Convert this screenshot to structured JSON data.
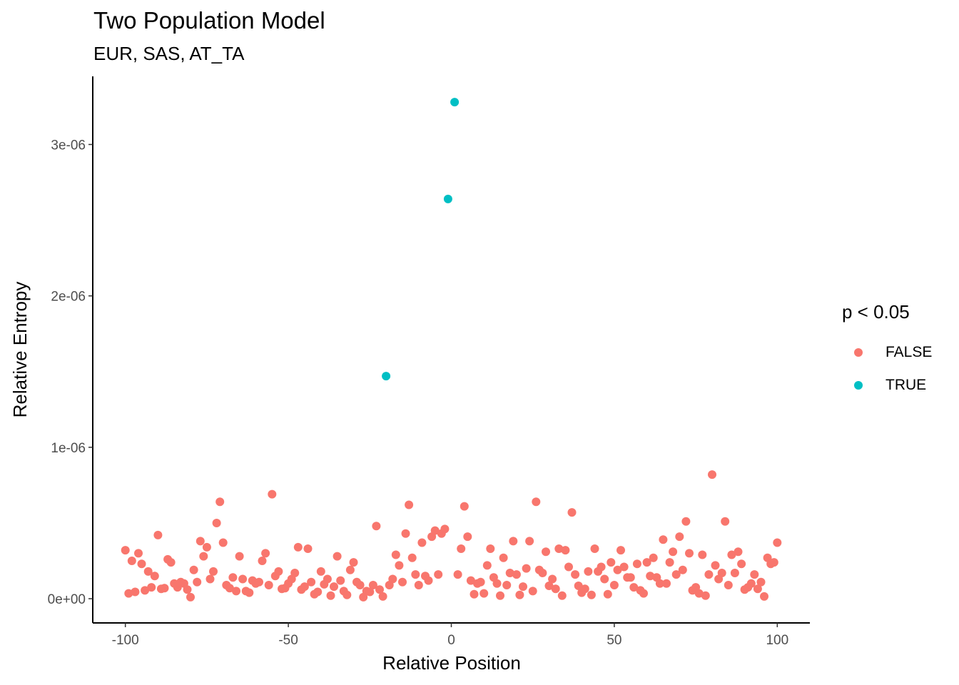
{
  "chart_data": {
    "type": "scatter",
    "title": "Two Population Model",
    "subtitle": "EUR, SAS, AT_TA",
    "xlabel": "Relative Position",
    "ylabel": "Relative Entropy",
    "xlim": [
      -110,
      110
    ],
    "ylim": [
      -1.6e-07,
      3.45e-06
    ],
    "x_ticks": [
      -100,
      -50,
      0,
      50,
      100
    ],
    "x_tick_labels": [
      "-100",
      "-50",
      "0",
      "50",
      "100"
    ],
    "y_ticks": [
      0,
      1e-06,
      2e-06,
      3e-06
    ],
    "y_tick_labels": [
      "0e+00",
      "1e-06",
      "2e-06",
      "3e-06"
    ],
    "grid": false,
    "legend": {
      "title": "p < 0.05",
      "position": "right"
    },
    "series": [
      {
        "name": "FALSE",
        "color": "#F8766D",
        "x": [
          -100,
          -99,
          -98,
          -97,
          -96,
          -95,
          -94,
          -93,
          -92,
          -91,
          -90,
          -89,
          -88,
          -87,
          -86,
          -85,
          -84,
          -83,
          -82,
          -81,
          -80,
          -79,
          -78,
          -77,
          -76,
          -75,
          -74,
          -73,
          -72,
          -71,
          -70,
          -69,
          -68,
          -67,
          -66,
          -65,
          -64,
          -63,
          -62,
          -61,
          -60,
          -59,
          -58,
          -57,
          -56,
          -55,
          -54,
          -53,
          -52,
          -51,
          -50,
          -49,
          -48,
          -47,
          -46,
          -45,
          -44,
          -43,
          -42,
          -41,
          -40,
          -39,
          -38,
          -37,
          -36,
          -35,
          -34,
          -33,
          -32,
          -31,
          -30,
          -29,
          -28,
          -27,
          -26,
          -25,
          -24,
          -23,
          -22,
          -21,
          -19,
          -18,
          -17,
          -16,
          -15,
          -14,
          -13,
          -12,
          -11,
          -10,
          -9,
          -8,
          -7,
          -6,
          -5,
          -4,
          -3,
          -2,
          2,
          3,
          4,
          5,
          6,
          7,
          8,
          9,
          10,
          11,
          12,
          13,
          14,
          15,
          16,
          17,
          18,
          19,
          20,
          21,
          22,
          23,
          24,
          25,
          26,
          27,
          28,
          29,
          30,
          31,
          32,
          33,
          34,
          35,
          36,
          37,
          38,
          39,
          40,
          41,
          42,
          43,
          44,
          45,
          46,
          47,
          48,
          49,
          50,
          51,
          52,
          53,
          54,
          55,
          56,
          57,
          58,
          59,
          60,
          61,
          62,
          63,
          64,
          65,
          66,
          67,
          68,
          69,
          70,
          71,
          72,
          73,
          74,
          75,
          76,
          77,
          78,
          79,
          80,
          81,
          82,
          83,
          84,
          85,
          86,
          87,
          88,
          89,
          90,
          91,
          92,
          93,
          94,
          95,
          96,
          97,
          98,
          99,
          100
        ],
        "y": [
          3.2e-07,
          3.5e-08,
          2.5e-07,
          4.5e-08,
          3e-07,
          2.3e-07,
          5.5e-08,
          1.8e-07,
          7.5e-08,
          1.5e-07,
          4.2e-07,
          6.5e-08,
          7e-08,
          2.6e-07,
          2.4e-07,
          1e-07,
          7.5e-08,
          1.1e-07,
          1e-07,
          6e-08,
          1e-08,
          1.9e-07,
          1.1e-07,
          3.8e-07,
          2.8e-07,
          3.4e-07,
          1.3e-07,
          1.8e-07,
          5e-07,
          6.4e-07,
          3.7e-07,
          9e-08,
          7e-08,
          1.4e-07,
          5e-08,
          2.8e-07,
          1.3e-07,
          5e-08,
          4e-08,
          1.2e-07,
          1e-07,
          1.1e-07,
          2.5e-07,
          3e-07,
          9e-08,
          6.9e-07,
          1.5e-07,
          1.8e-07,
          6.5e-08,
          7e-08,
          1e-07,
          1.3e-07,
          1.7e-07,
          3.4e-07,
          6e-08,
          8e-08,
          3.3e-07,
          1.1e-07,
          3e-08,
          4.5e-08,
          1.8e-07,
          9.5e-08,
          1.3e-07,
          2e-08,
          8e-08,
          2.8e-07,
          1.2e-07,
          5e-08,
          2.5e-08,
          1.9e-07,
          2.4e-07,
          1.1e-07,
          9e-08,
          1e-08,
          5e-08,
          4.5e-08,
          9e-08,
          4.8e-07,
          6e-08,
          1.5e-08,
          9e-08,
          1.3e-07,
          2.9e-07,
          2.2e-07,
          1.1e-07,
          4.3e-07,
          6.2e-07,
          2.7e-07,
          1.6e-07,
          9e-08,
          3.7e-07,
          1.5e-07,
          1.2e-07,
          4.1e-07,
          4.5e-07,
          1.6e-07,
          4.3e-07,
          4.6e-07,
          1.6e-07,
          3.3e-07,
          6.1e-07,
          4.1e-07,
          1.2e-07,
          3e-08,
          1e-07,
          1.1e-07,
          3.5e-08,
          2.2e-07,
          3.3e-07,
          1.4e-07,
          1e-07,
          2e-08,
          2.7e-07,
          9e-08,
          1.7e-07,
          3.8e-07,
          1.6e-07,
          2.5e-08,
          8e-08,
          2e-07,
          3.8e-07,
          5e-08,
          6.4e-07,
          1.9e-07,
          1.7e-07,
          3.1e-07,
          8.5e-08,
          1.3e-07,
          6.5e-08,
          3.3e-07,
          2e-08,
          3.2e-07,
          2.1e-07,
          5.7e-07,
          1.6e-07,
          8.5e-08,
          4e-08,
          6.5e-08,
          1.8e-07,
          2.5e-08,
          3.3e-07,
          1.8e-07,
          2.1e-07,
          1.3e-07,
          3e-08,
          2.4e-07,
          9e-08,
          1.9e-07,
          3.2e-07,
          2.1e-07,
          1.4e-07,
          1.4e-07,
          7.5e-08,
          2.3e-07,
          5.5e-08,
          3.5e-08,
          2.4e-07,
          1.5e-07,
          2.7e-07,
          1.4e-07,
          1e-07,
          3.9e-07,
          1e-07,
          2.4e-07,
          3.1e-07,
          1.6e-07,
          4.1e-07,
          1.9e-07,
          5.1e-07,
          3e-07,
          5.5e-08,
          7.5e-08,
          3.5e-08,
          2.9e-07,
          2e-08,
          1.6e-07,
          8.2e-07,
          2.2e-07,
          1.3e-07,
          1.7e-07,
          5.1e-07,
          9e-08,
          2.9e-07,
          1.7e-07,
          3.1e-07,
          2.3e-07,
          6e-08,
          7.5e-08,
          1e-07,
          1.6e-07,
          6.5e-08,
          1.1e-07,
          1.5e-08,
          2.7e-07,
          2.3e-07,
          2.4e-07,
          3.7e-07
        ]
      },
      {
        "name": "TRUE",
        "color": "#00BFC4",
        "x": [
          -20,
          -1,
          1
        ],
        "y": [
          1.47e-06,
          2.64e-06,
          3.28e-06
        ]
      }
    ]
  }
}
